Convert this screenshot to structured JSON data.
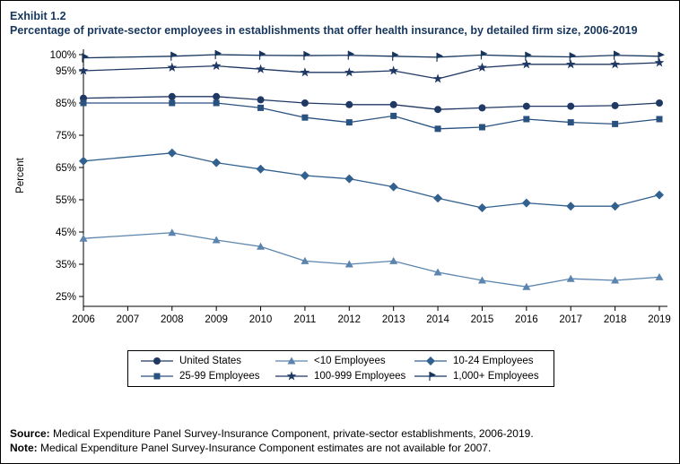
{
  "header": {
    "exhibit": "Exhibit 1.2",
    "title": "Percentage of private-sector employees in establishments that offer health insurance, by detailed firm size, 2006-2019"
  },
  "footer": {
    "source_label": "Source:",
    "source_text": "Medical Expenditure Panel Survey-Insurance Component, private-sector establishments, 2006-2019.",
    "note_label": "Note:",
    "note_text": "Medical Expenditure Panel Survey-Insurance Component estimates are not available for 2007."
  },
  "colors": {
    "title_text": "#17365D",
    "axis_text": "#000000",
    "frame": "#000000"
  },
  "chart_data": {
    "type": "line",
    "title": "Percentage of private-sector employees in establishments that offer health insurance, by detailed firm size, 2006-2019",
    "xlabel": "",
    "ylabel": "Percent",
    "x": [
      2006,
      2007,
      2008,
      2009,
      2010,
      2011,
      2012,
      2013,
      2014,
      2015,
      2016,
      2017,
      2018,
      2019
    ],
    "yticks": [
      25,
      35,
      45,
      55,
      65,
      75,
      85,
      95,
      100
    ],
    "ytick_suffix": "%",
    "ylim": [
      25,
      100
    ],
    "grid": false,
    "legend_position": "bottom",
    "note": "2007 values are null because estimates are not available for 2007; lines connect 2006 to 2008.",
    "series": [
      {
        "name": "United States",
        "marker": "circle",
        "color": "#1F3864",
        "values": [
          86.5,
          null,
          87,
          87,
          86,
          85,
          84.5,
          84.5,
          83,
          83.5,
          84,
          84,
          84.2,
          85
        ]
      },
      {
        "name": "<10 Employees",
        "marker": "triangle",
        "color": "#5B84AE",
        "values": [
          43,
          null,
          44.8,
          42.5,
          40.5,
          36,
          35,
          36,
          32.5,
          30,
          28,
          30.5,
          30,
          31
        ]
      },
      {
        "name": "10-24 Employees",
        "marker": "diamond",
        "color": "#33618F",
        "values": [
          67,
          null,
          69.5,
          66.5,
          64.5,
          62.5,
          61.5,
          59,
          55.5,
          52.5,
          54,
          53,
          53,
          56.5
        ]
      },
      {
        "name": "25-99 Employees",
        "marker": "square",
        "color": "#2A5280",
        "values": [
          85,
          null,
          85,
          85,
          83.5,
          80.5,
          79,
          81,
          77,
          77.5,
          80,
          79,
          78.5,
          80
        ]
      },
      {
        "name": "100-999 Employees",
        "marker": "star",
        "color": "#1F3864",
        "values": [
          95,
          null,
          96,
          96.5,
          95.5,
          94.5,
          94.5,
          95,
          92.5,
          96,
          97,
          97,
          97,
          97.5
        ]
      },
      {
        "name": "1,000+ Employees",
        "marker": "flag",
        "color": "#17365D",
        "values": [
          99,
          null,
          99.5,
          100,
          99.8,
          99.7,
          99.8,
          99.5,
          99.2,
          99.9,
          99.5,
          99.3,
          99.8,
          99.5
        ]
      }
    ]
  }
}
